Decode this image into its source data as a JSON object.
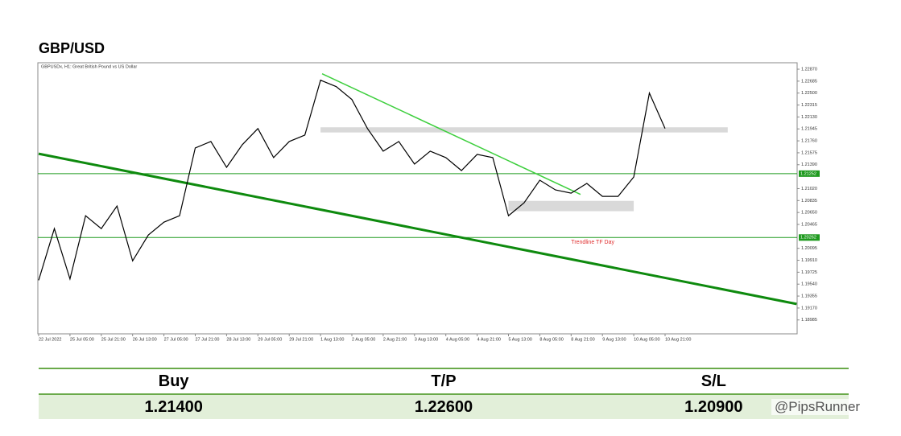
{
  "chart_data": {
    "type": "line",
    "title": "GBP/USD",
    "subtitle": "GBPUSDx, H1:  Great British Pound vs US Dollar",
    "categories": [
      "22 Jul 2022",
      null,
      "25 Jul 05:00",
      null,
      "25 Jul 21:00",
      null,
      "26 Jul 13:00",
      null,
      "27 Jul 05:00",
      null,
      "27 Jul 21:00",
      null,
      "28 Jul 13:00",
      null,
      "29 Jul 05:00",
      null,
      "29 Jul 21:00",
      null,
      "1 Aug 13:00",
      null,
      "2 Aug 05:00",
      null,
      "2 Aug 21:00",
      null,
      "3 Aug 13:00",
      null,
      "4 Aug 05:00",
      null,
      "4 Aug 21:00",
      null,
      "5 Aug 13:00",
      null,
      "8 Aug 05:00",
      null,
      "8 Aug 21:00",
      null,
      "9 Aug 13:00",
      null,
      "10 Aug 05:00",
      null,
      "10 Aug 21:00"
    ],
    "series": [
      {
        "name": "GBPUSDx",
        "color": "#000000",
        "values": [
          1.196,
          1.204,
          1.1962,
          1.206,
          1.204,
          1.2075,
          1.199,
          1.203,
          1.205,
          1.206,
          1.2165,
          1.2175,
          1.2135,
          1.217,
          1.2195,
          1.215,
          1.2175,
          1.2185,
          1.227,
          1.226,
          1.224,
          1.2195,
          1.216,
          1.2175,
          1.214,
          1.216,
          1.215,
          1.213,
          1.2155,
          1.215,
          1.206,
          1.208,
          1.2115,
          1.21,
          1.2095,
          1.211,
          1.209,
          1.209,
          1.212,
          1.225,
          1.2195
        ]
      }
    ],
    "ylim": [
      1.1877,
      1.2297
    ],
    "yticks": [
      {
        "value": 1.2287,
        "label": "1.22870"
      },
      {
        "value": 1.22685,
        "label": "1.22685"
      },
      {
        "value": 1.225,
        "label": "1.22500"
      },
      {
        "value": 1.22315,
        "label": "1.22315"
      },
      {
        "value": 1.2213,
        "label": "1.22130"
      },
      {
        "value": 1.21945,
        "label": "1.21945"
      },
      {
        "value": 1.2176,
        "label": "1.21760"
      },
      {
        "value": 1.21575,
        "label": "1.21575"
      },
      {
        "value": 1.2139,
        "label": "1.21390"
      },
      {
        "value": 1.2102,
        "label": "1.21020"
      },
      {
        "value": 1.20835,
        "label": "1.20835"
      },
      {
        "value": 1.2065,
        "label": "1.20650"
      },
      {
        "value": 1.20465,
        "label": "1.20465"
      },
      {
        "value": 1.20095,
        "label": "1.20095"
      },
      {
        "value": 1.1991,
        "label": "1.19910"
      },
      {
        "value": 1.19725,
        "label": "1.19725"
      },
      {
        "value": 1.1954,
        "label": "1.19540"
      },
      {
        "value": 1.19355,
        "label": "1.19355"
      },
      {
        "value": 1.1917,
        "label": "1.19170"
      },
      {
        "value": 1.18985,
        "label": "1.18985"
      }
    ],
    "levels": [
      {
        "value": 1.21252,
        "label": "1.21252",
        "color": "#1f9a1f"
      },
      {
        "value": 1.20262,
        "label": "1.20262",
        "color": "#1f9a1f"
      }
    ],
    "zones": [
      {
        "x": [
          18,
          44
        ],
        "y": [
          1.2189,
          1.2197
        ],
        "color": "#d9d9d9"
      },
      {
        "x": [
          30,
          38
        ],
        "y": [
          1.2067,
          1.2083
        ],
        "color": "#d9d9d9"
      }
    ],
    "trendlines": [
      {
        "x": [
          0,
          48.4
        ],
        "y": [
          1.2156,
          1.19233
        ],
        "color": "#0e8a0e",
        "width": 3
      },
      {
        "x": [
          18.1,
          34.6
        ],
        "y": [
          1.228,
          1.2093
        ],
        "color": "#3ecf3e",
        "width": 1.5
      }
    ],
    "annotations": [
      {
        "text": "Trendline TF Day",
        "x": 34,
        "y": 1.2019,
        "color": "#e03030"
      }
    ]
  },
  "table": {
    "header": [
      "Buy",
      "T/P",
      "S/L"
    ],
    "rows": [
      [
        "1.21400",
        "1.22600",
        "1.20900"
      ]
    ]
  },
  "watermark": "@PipsRunner"
}
